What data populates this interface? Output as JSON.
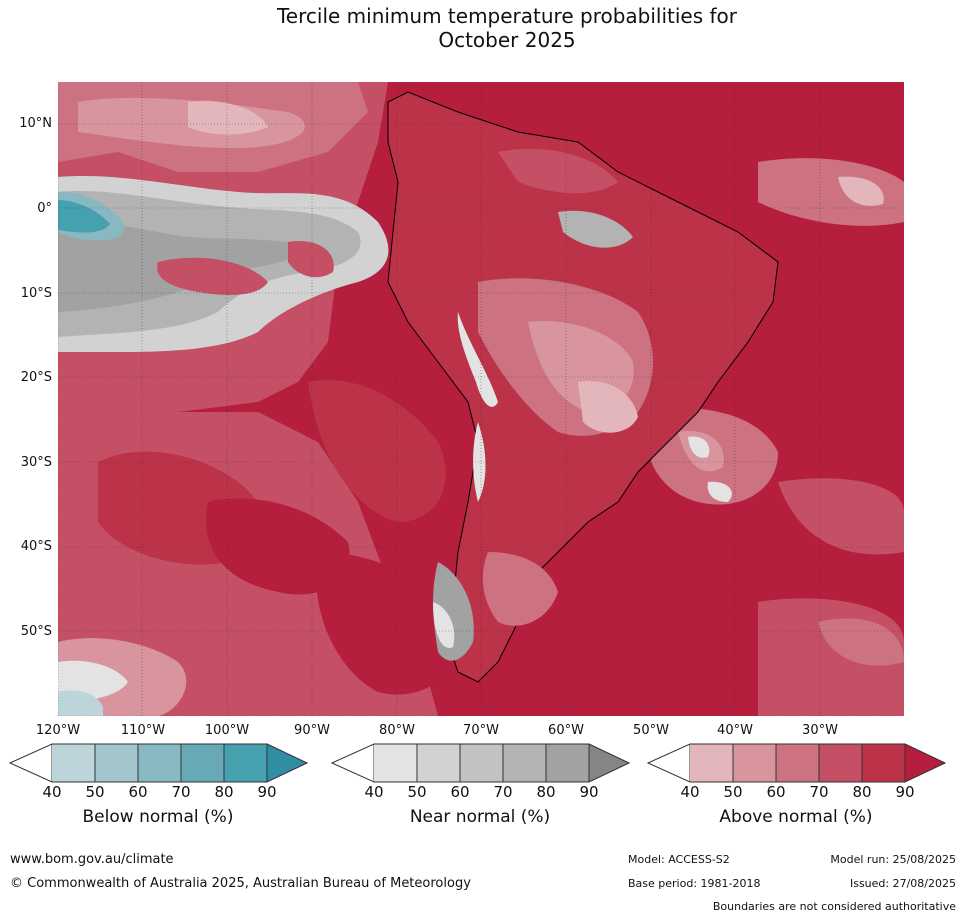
{
  "title": {
    "line1": "Tercile minimum temperature probabilities for",
    "line2": "October 2025"
  },
  "axes": {
    "latitude_labels": [
      "10°N",
      "0°",
      "10°S",
      "20°S",
      "30°S",
      "40°S",
      "50°S"
    ],
    "longitude_labels": [
      "120°W",
      "110°W",
      "100°W",
      "90°W",
      "80°W",
      "70°W",
      "60°W",
      "50°W",
      "40°W",
      "30°W"
    ]
  },
  "legends": [
    {
      "title": "Below normal (%)",
      "ticks": [
        "40",
        "50",
        "60",
        "70",
        "80",
        "90"
      ],
      "colors": [
        "#ffffff",
        "#bdd5da",
        "#a3c6cd",
        "#88b8c1",
        "#67a9b6",
        "#45a0b0",
        "#2f8ea2"
      ]
    },
    {
      "title": "Near normal (%)",
      "ticks": [
        "40",
        "50",
        "60",
        "70",
        "80",
        "90"
      ],
      "colors": [
        "#ffffff",
        "#e3e3e3",
        "#d2d2d2",
        "#c2c2c2",
        "#b3b3b3",
        "#a2a2a2",
        "#858585"
      ]
    },
    {
      "title": "Above normal (%)",
      "ticks": [
        "40",
        "50",
        "60",
        "70",
        "80",
        "90"
      ],
      "colors": [
        "#ffffff",
        "#e3b6bb",
        "#d9959e",
        "#cc7281",
        "#c55065",
        "#bc3349",
        "#b51e3d"
      ]
    }
  ],
  "footer": {
    "website": "www.bom.gov.au/climate",
    "copyright": "© Commonwealth of Australia 2025, Australian Bureau of Meteorology",
    "model": "Model: ACCESS-S2",
    "model_run": "Model run: 25/08/2025",
    "base_period": "Base period: 1981-2018",
    "issued": "Issued: 27/08/2025",
    "disclaimer": "Boundaries are not considered authoritative"
  }
}
